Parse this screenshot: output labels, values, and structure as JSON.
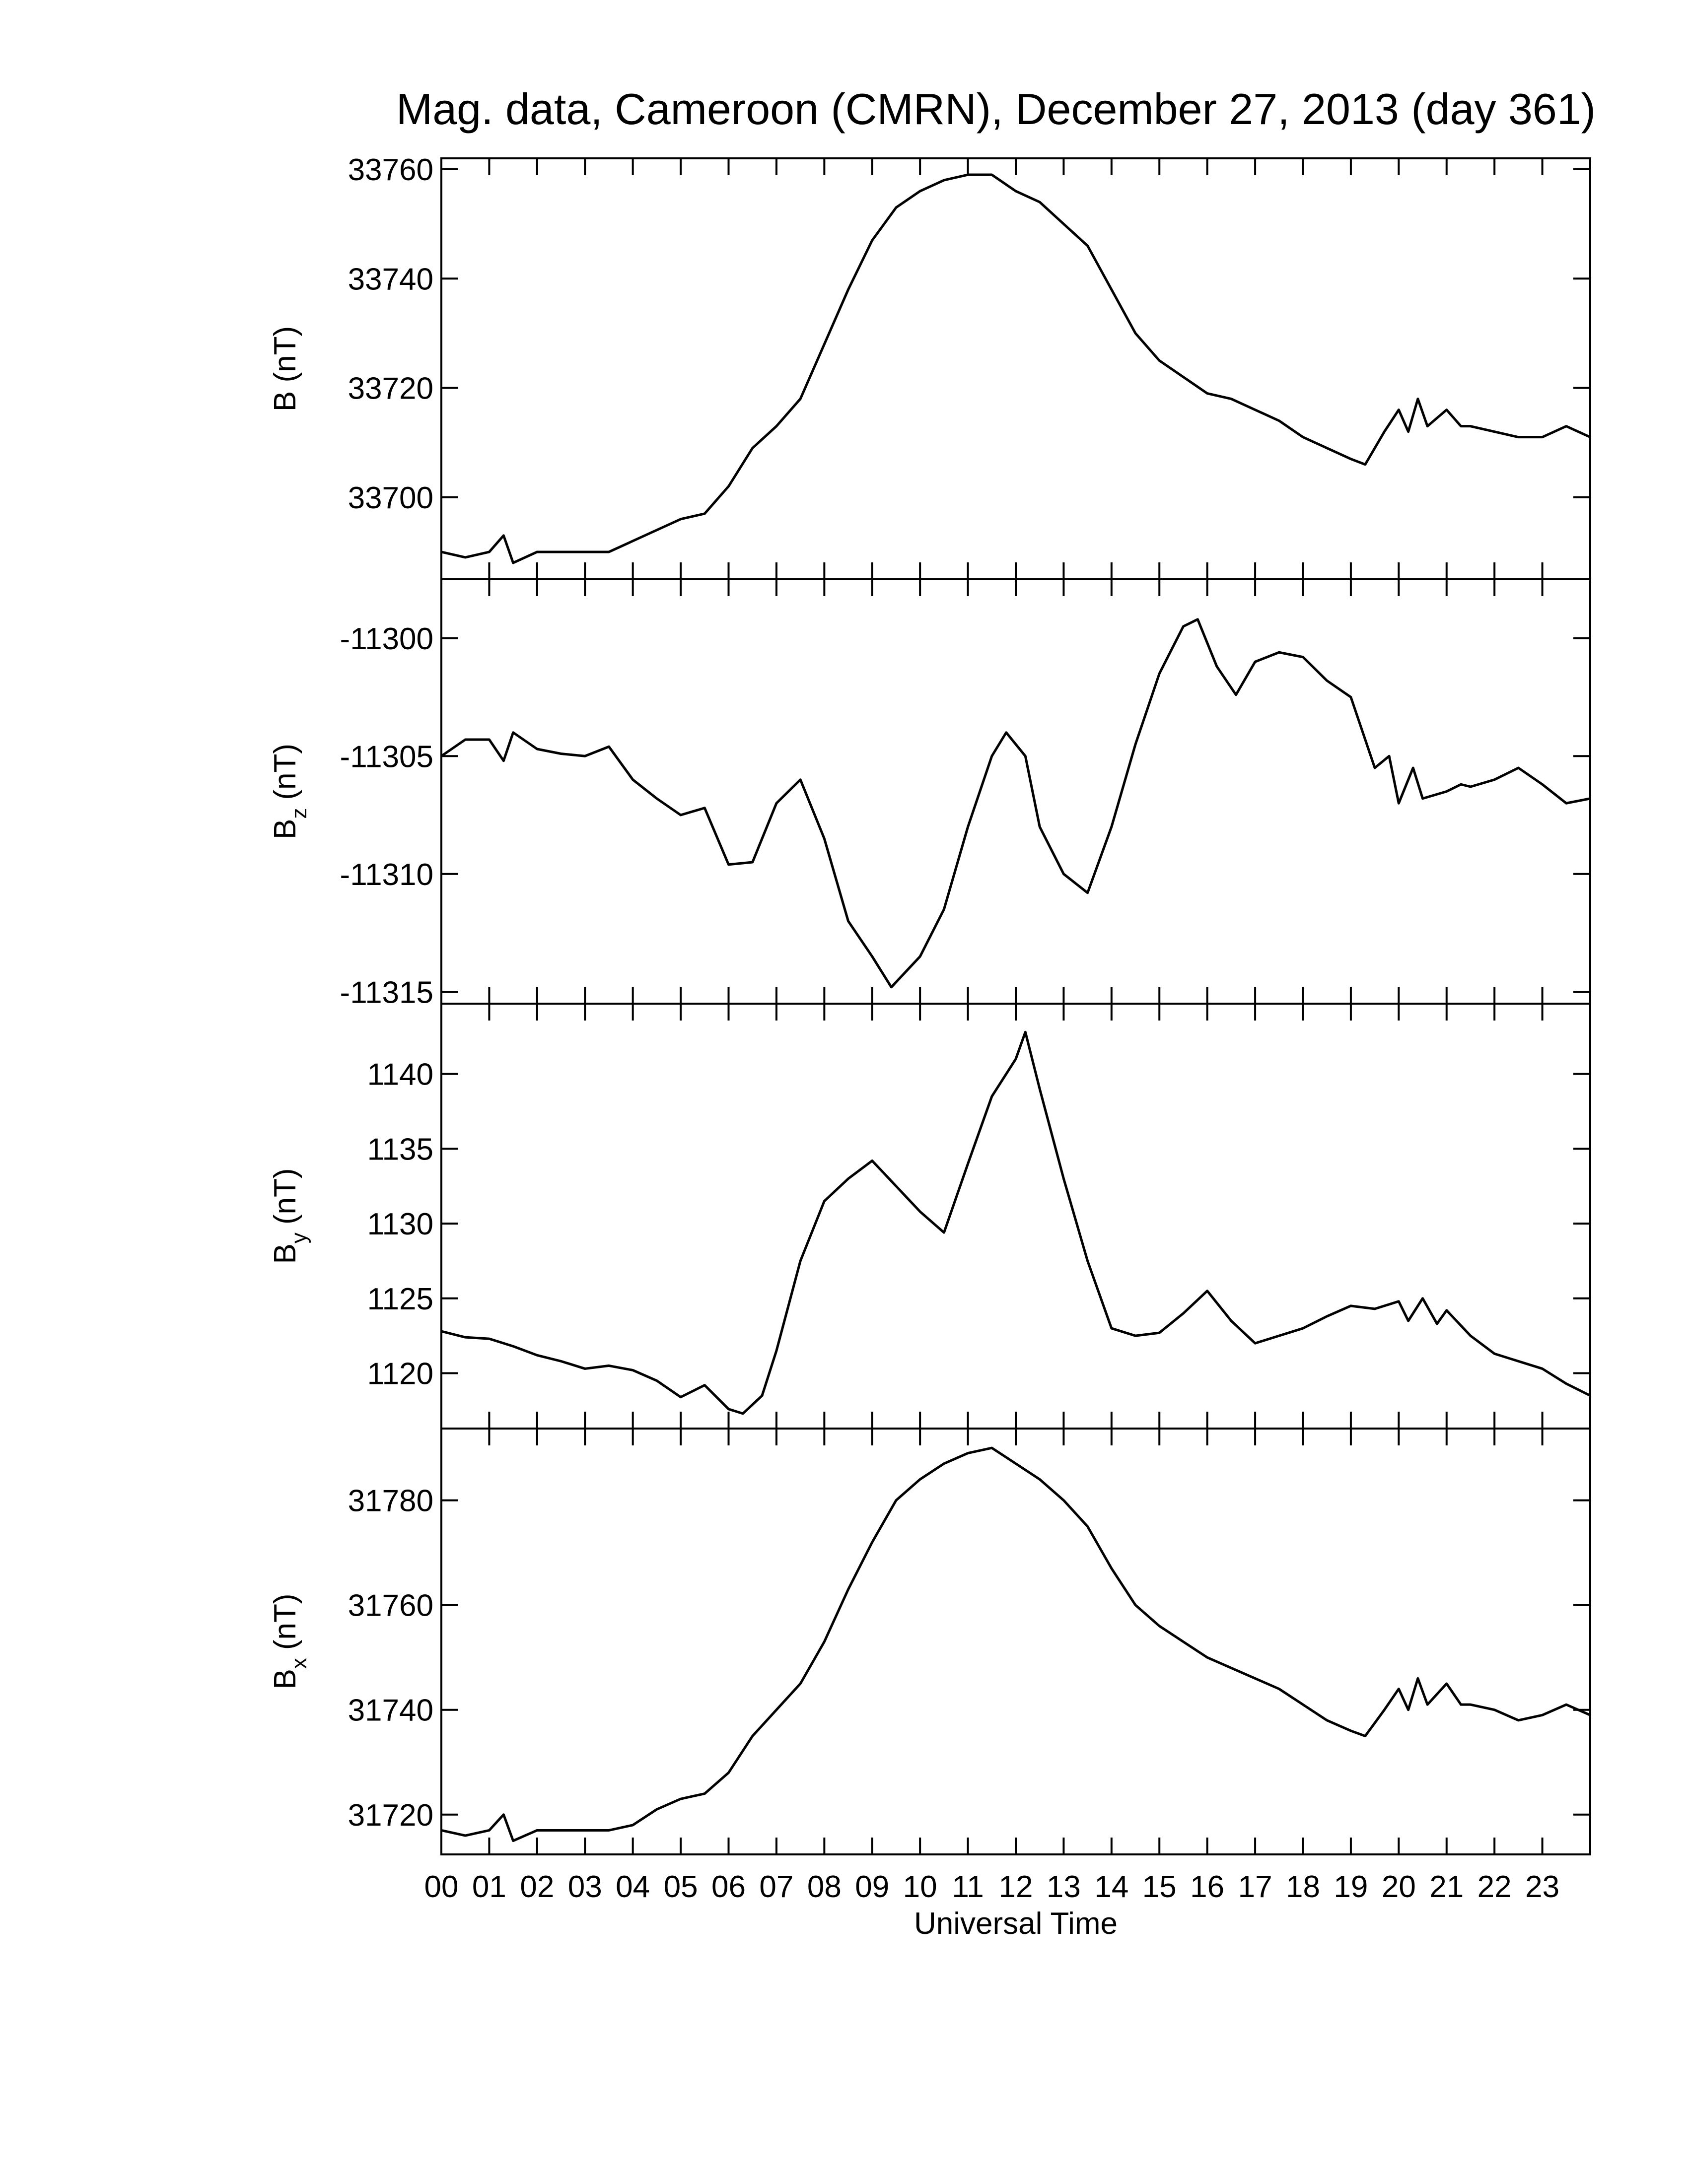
{
  "chart_data": [
    {
      "type": "line",
      "title": "Mag. data, Cameroon (CMRN), December 27, 2013 (day 361)",
      "ylabel": "B (nT)",
      "color": "#000000",
      "xlim": [
        0,
        24
      ],
      "xticks": [
        0,
        1,
        2,
        3,
        4,
        5,
        6,
        7,
        8,
        9,
        10,
        11,
        12,
        13,
        14,
        15,
        16,
        17,
        18,
        19,
        20,
        21,
        22,
        23
      ],
      "ylim": [
        33685,
        33762
      ],
      "yticks": [
        33700,
        33720,
        33740,
        33760
      ],
      "x": [
        0,
        0.5,
        1,
        1.3,
        1.5,
        2,
        2.5,
        3,
        3.5,
        4,
        4.5,
        5,
        5.5,
        6,
        6.5,
        7,
        7.5,
        8,
        8.5,
        9,
        9.5,
        10,
        10.5,
        11,
        11.5,
        12,
        12.5,
        13,
        13.5,
        14,
        14.5,
        15,
        15.5,
        16,
        16.5,
        17,
        17.5,
        18,
        18.5,
        19,
        19.3,
        19.7,
        20,
        20.2,
        20.4,
        20.6,
        21,
        21.3,
        21.5,
        22,
        22.5,
        23,
        23.5,
        24
      ],
      "values": [
        33690,
        33689,
        33690,
        33693,
        33688,
        33690,
        33690,
        33690,
        33690,
        33692,
        33694,
        33696,
        33697,
        33702,
        33709,
        33713,
        33718,
        33728,
        33738,
        33747,
        33753,
        33756,
        33758,
        33759,
        33759,
        33756,
        33754,
        33750,
        33746,
        33738,
        33730,
        33725,
        33722,
        33719,
        33718,
        33716,
        33714,
        33711,
        33709,
        33707,
        33706,
        33712,
        33716,
        33712,
        33718,
        33713,
        33716,
        33713,
        33713,
        33712,
        33711,
        33711,
        33713,
        33711
      ]
    },
    {
      "type": "line",
      "ylabel": {
        "base": "B",
        "sub": "z",
        "unit": "(nT)"
      },
      "color": "#000000",
      "xlim": [
        0,
        24
      ],
      "xticks": [
        0,
        1,
        2,
        3,
        4,
        5,
        6,
        7,
        8,
        9,
        10,
        11,
        12,
        13,
        14,
        15,
        16,
        17,
        18,
        19,
        20,
        21,
        22,
        23
      ],
      "ylim": [
        -11315.5,
        -11297.5
      ],
      "yticks": [
        -11315,
        -11310,
        -11305,
        -11300
      ],
      "x": [
        0,
        0.5,
        1,
        1.3,
        1.5,
        2,
        2.5,
        3,
        3.5,
        4,
        4.5,
        5,
        5.5,
        6,
        6.5,
        7,
        7.5,
        8,
        8.5,
        9,
        9.4,
        10,
        10.5,
        11,
        11.5,
        11.8,
        12.2,
        12.5,
        13,
        13.5,
        14,
        14.5,
        15,
        15.5,
        15.8,
        16.2,
        16.6,
        17,
        17.5,
        18,
        18.5,
        19,
        19.5,
        19.8,
        20,
        20.3,
        20.5,
        21,
        21.3,
        21.5,
        22,
        22.5,
        23,
        23.5,
        24
      ],
      "values": [
        -11305,
        -11304.3,
        -11304.3,
        -11305.2,
        -11304,
        -11304.7,
        -11304.9,
        -11305,
        -11304.6,
        -11306,
        -11306.8,
        -11307.5,
        -11307.2,
        -11309.6,
        -11309.5,
        -11307,
        -11306,
        -11308.5,
        -11312,
        -11313.5,
        -11314.8,
        -11313.5,
        -11311.5,
        -11308,
        -11305,
        -11304,
        -11305,
        -11308,
        -11310,
        -11310.8,
        -11308,
        -11304.5,
        -11301.5,
        -11299.5,
        -11299.2,
        -11301.2,
        -11302.4,
        -11301,
        -11300.6,
        -11300.8,
        -11301.8,
        -11302.5,
        -11305.5,
        -11305,
        -11307,
        -11305.5,
        -11306.8,
        -11306.5,
        -11306.2,
        -11306.3,
        -11306,
        -11305.5,
        -11306.2,
        -11307,
        -11306.8
      ]
    },
    {
      "type": "line",
      "ylabel": {
        "base": "B",
        "sub": "y",
        "unit": "(nT)"
      },
      "color": "#000000",
      "xlim": [
        0,
        24
      ],
      "xticks": [
        0,
        1,
        2,
        3,
        4,
        5,
        6,
        7,
        8,
        9,
        10,
        11,
        12,
        13,
        14,
        15,
        16,
        17,
        18,
        19,
        20,
        21,
        22,
        23
      ],
      "ylim": [
        1116.3,
        1144.7
      ],
      "yticks": [
        1120,
        1125,
        1130,
        1135,
        1140
      ],
      "x": [
        0,
        0.5,
        1,
        1.5,
        2,
        2.5,
        3,
        3.5,
        4,
        4.5,
        5,
        5.5,
        6,
        6.3,
        6.7,
        7,
        7.5,
        8,
        8.5,
        9,
        9.5,
        10,
        10.5,
        11,
        11.5,
        12,
        12.2,
        12.5,
        13,
        13.5,
        14,
        14.5,
        15,
        15.5,
        16,
        16.5,
        17,
        17.5,
        18,
        18.5,
        19,
        19.5,
        20,
        20.2,
        20.5,
        20.8,
        21,
        21.5,
        22,
        22.5,
        23,
        23.5,
        24
      ],
      "values": [
        1122.8,
        1122.4,
        1122.3,
        1121.8,
        1121.2,
        1120.8,
        1120.3,
        1120.5,
        1120.2,
        1119.5,
        1118.4,
        1119.2,
        1117.6,
        1117.3,
        1118.5,
        1121.5,
        1127.5,
        1131.5,
        1133,
        1134.2,
        1132.5,
        1130.8,
        1129.4,
        1134,
        1138.5,
        1141,
        1142.8,
        1139,
        1133,
        1127.5,
        1123,
        1122.5,
        1122.7,
        1124,
        1125.5,
        1123.5,
        1122,
        1122.5,
        1123,
        1123.8,
        1124.5,
        1124.3,
        1124.8,
        1123.5,
        1125,
        1123.3,
        1124.2,
        1122.5,
        1121.3,
        1120.8,
        1120.3,
        1119.3,
        1118.5
      ]
    },
    {
      "type": "line",
      "ylabel": {
        "base": "B",
        "sub": "x",
        "unit": "(nT)"
      },
      "xlabel": "Universal Time",
      "color": "#000000",
      "xlim": [
        0,
        24
      ],
      "xticks": [
        {
          "value": 0,
          "label": "00"
        },
        {
          "value": 1,
          "label": "01"
        },
        {
          "value": 2,
          "label": "02"
        },
        {
          "value": 3,
          "label": "03"
        },
        {
          "value": 4,
          "label": "04"
        },
        {
          "value": 5,
          "label": "05"
        },
        {
          "value": 6,
          "label": "06"
        },
        {
          "value": 7,
          "label": "07"
        },
        {
          "value": 8,
          "label": "08"
        },
        {
          "value": 9,
          "label": "09"
        },
        10,
        11,
        12,
        13,
        14,
        15,
        16,
        17,
        18,
        19,
        20,
        21,
        22,
        23
      ],
      "ylim": [
        31712.4,
        31793.7
      ],
      "yticks": [
        31720,
        31740,
        31760,
        31780
      ],
      "x": [
        0,
        0.5,
        1,
        1.3,
        1.5,
        2,
        2.5,
        3,
        3.5,
        4,
        4.5,
        5,
        5.5,
        6,
        6.5,
        7,
        7.5,
        8,
        8.5,
        9,
        9.5,
        10,
        10.5,
        11,
        11.5,
        12,
        12.5,
        13,
        13.5,
        14,
        14.5,
        15,
        15.5,
        16,
        16.5,
        17,
        17.5,
        18,
        18.5,
        19,
        19.3,
        19.7,
        20,
        20.2,
        20.4,
        20.6,
        21,
        21.3,
        21.5,
        22,
        22.5,
        23,
        23.5,
        24
      ],
      "values": [
        31717,
        31716,
        31717,
        31720,
        31715,
        31717,
        31717,
        31717,
        31717,
        31718,
        31721,
        31723,
        31724,
        31728,
        31735,
        31740,
        31745,
        31753,
        31763,
        31772,
        31780,
        31784,
        31787,
        31789,
        31790,
        31787,
        31784,
        31780,
        31775,
        31767,
        31760,
        31756,
        31753,
        31750,
        31748,
        31746,
        31744,
        31741,
        31738,
        31736,
        31735,
        31740,
        31744,
        31740,
        31746,
        31741,
        31745,
        31741,
        31741,
        31740,
        31738,
        31739,
        31741,
        31739
      ]
    }
  ]
}
